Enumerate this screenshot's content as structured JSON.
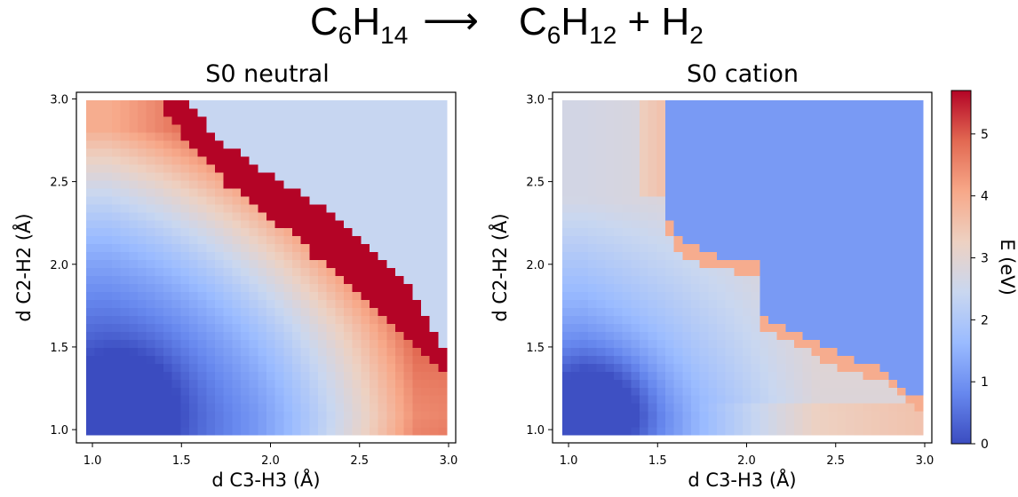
{
  "equation": {
    "reactant": {
      "parts": [
        {
          "t": "C"
        },
        {
          "s": "6"
        },
        {
          "t": "H"
        },
        {
          "s": "14"
        }
      ]
    },
    "arrow": "⟶",
    "product": {
      "parts": [
        {
          "t": "C"
        },
        {
          "s": "6"
        },
        {
          "t": "H"
        },
        {
          "s": "12"
        },
        {
          "t": " + H"
        },
        {
          "s": "2"
        }
      ]
    }
  },
  "colorbar": {
    "label": "E (eV)",
    "min": 0,
    "max": 5.7,
    "ticks": [
      0,
      1,
      2,
      3,
      4,
      5
    ],
    "colormap": "coolwarm",
    "colormap_stops": [
      "#3b4cc0",
      "#6788ee",
      "#9abbff",
      "#c9d7f0",
      "#edd1c2",
      "#f7a889",
      "#e26952",
      "#b40426"
    ]
  },
  "chart_data": [
    {
      "type": "heatmap",
      "title": "S0 neutral",
      "xlabel": "d C3-H3 (Å)",
      "ylabel": "d C2-H2 (Å)",
      "xlim": [
        0.91,
        3.04
      ],
      "ylim": [
        0.92,
        3.04
      ],
      "xticks": [
        1.0,
        1.5,
        2.0,
        2.5,
        3.0
      ],
      "yticks": [
        1.0,
        1.5,
        2.0,
        2.5,
        3.0
      ],
      "grid": {
        "nx": 42,
        "ny": 42,
        "x_range": [
          0.925,
          3.025
        ],
        "y_range": [
          0.925,
          3.025
        ]
      },
      "description": "Energy surface (eV): minimum ~0.2 near (1.15, 1.1); saturated red (>5.7) band between the ridge and an upper-right plateau of ~2.4",
      "ridge_boundary_lower": [
        [
          1.35,
          3.02
        ],
        [
          1.55,
          2.7
        ],
        [
          1.8,
          2.45
        ],
        [
          2.1,
          2.2
        ],
        [
          2.4,
          1.9
        ],
        [
          2.7,
          1.6
        ],
        [
          3.0,
          1.3
        ]
      ],
      "ridge_boundary_upper": [
        [
          1.5,
          3.02
        ],
        [
          1.7,
          2.78
        ],
        [
          2.0,
          2.55
        ],
        [
          2.3,
          2.35
        ],
        [
          2.5,
          2.15
        ],
        [
          2.78,
          1.9
        ],
        [
          3.0,
          1.45
        ]
      ],
      "plateau_value": 2.4,
      "saturated_value": 5.7
    },
    {
      "type": "heatmap",
      "title": "S0 cation",
      "xlabel": "d C3-H3 (Å)",
      "ylabel": "d C2-H2 (Å)",
      "xlim": [
        0.91,
        3.04
      ],
      "ylim": [
        0.92,
        3.04
      ],
      "xticks": [
        1.0,
        1.5,
        2.0,
        2.5,
        3.0
      ],
      "yticks": [
        1.0,
        1.5,
        2.0,
        2.5,
        3.0
      ],
      "grid": {
        "nx": 42,
        "ny": 42,
        "x_range": [
          0.925,
          3.025
        ],
        "y_range": [
          0.925,
          3.025
        ]
      },
      "description": "Energy surface (eV): minimum ~0.2 near (1.15, 1.1); upper-right region plateau ~1.1 (blue) with an orange ~4 boundary near x=1.5 and y=2.0",
      "region_boundary": [
        [
          1.5,
          3.02
        ],
        [
          1.5,
          2.4
        ],
        [
          1.6,
          2.15
        ],
        [
          1.8,
          2.05
        ],
        [
          2.05,
          2.0
        ],
        [
          2.05,
          1.7
        ],
        [
          2.2,
          1.62
        ],
        [
          2.5,
          1.45
        ],
        [
          2.8,
          1.33
        ],
        [
          3.0,
          1.15
        ]
      ],
      "plateau_value": 1.1,
      "boundary_value": 4.0
    }
  ]
}
